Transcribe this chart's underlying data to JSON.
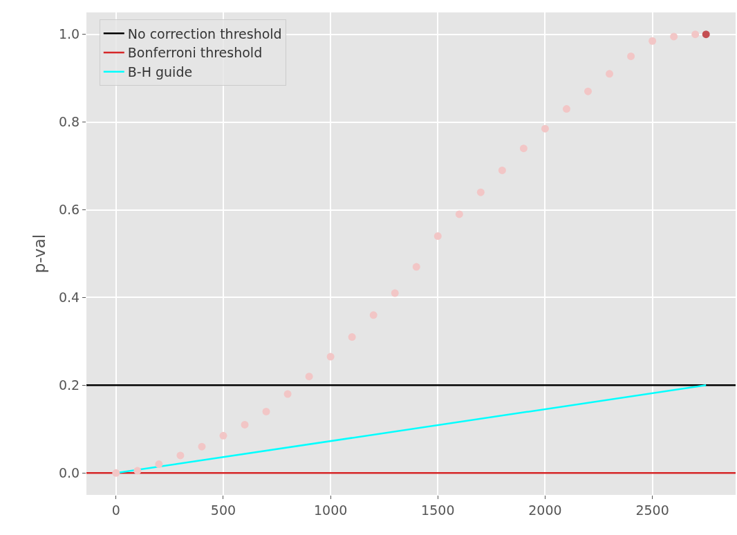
{
  "chart_data": {
    "type": "scatter",
    "ylabel": "p-val",
    "xlim": [
      -138,
      2888
    ],
    "ylim": [
      -0.05,
      1.05
    ],
    "xticks": [
      0,
      500,
      1000,
      1500,
      2000,
      2500
    ],
    "yticks": [
      {
        "value": 0,
        "label": "0.0"
      },
      {
        "value": 0.2,
        "label": "0.2"
      },
      {
        "value": 0.4,
        "label": "0.4"
      },
      {
        "value": 0.6,
        "label": "0.6"
      },
      {
        "value": 0.8,
        "label": "0.8"
      },
      {
        "value": 1,
        "label": "1.0"
      }
    ],
    "grid": true,
    "legend": "top left",
    "marker": "circle",
    "series": [
      {
        "color": "#f2c6c6",
        "x": [
          0,
          100,
          200,
          300,
          400,
          500,
          600,
          700,
          800,
          900,
          1000,
          1100,
          1200,
          1300,
          1400,
          1500,
          1600,
          1700,
          1800,
          1900,
          2000,
          2100,
          2200,
          2300,
          2400,
          2500,
          2600,
          2700
        ],
        "values": [
          0,
          0.005,
          0.02,
          0.04,
          0.06,
          0.085,
          0.11,
          0.14,
          0.18,
          0.22,
          0.265,
          0.31,
          0.36,
          0.41,
          0.47,
          0.54,
          0.59,
          0.64,
          0.69,
          0.74,
          0.785,
          0.83,
          0.87,
          0.91,
          0.95,
          0.985,
          0.995,
          1.0
        ]
      },
      {
        "color": "#c44e52",
        "x": [
          2750
        ],
        "values": [
          1.0
        ]
      },
      {
        "type": "line",
        "marker": "none",
        "name": "B-H guide",
        "color": "#00ffff",
        "x": [
          0,
          2750
        ],
        "values": [
          0,
          0.2
        ]
      }
    ],
    "ref_lines": [
      {
        "axis": "y",
        "value": 0.2,
        "label": "No correction threshold",
        "color": "#000000"
      },
      {
        "axis": "y",
        "value": 0,
        "label": "Bonferroni threshold",
        "color": "#d62728"
      }
    ]
  }
}
